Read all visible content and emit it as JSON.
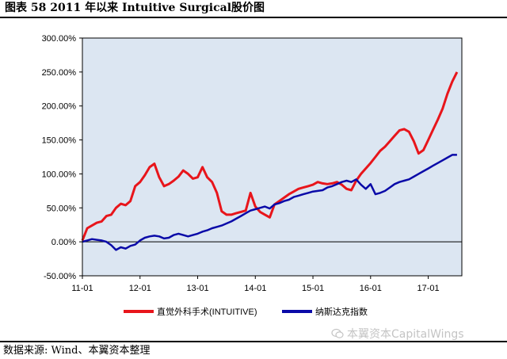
{
  "caption": "图表 58 2011 年以来 Intuitive Surgical股价图",
  "source": "数据来源:  Wind、本翼资本整理",
  "watermark": "本翼资本CapitalWings",
  "colors": {
    "intuitive": "#e8151b",
    "nasdaq": "#0a0aa8",
    "plot_bg": "#dce6f2",
    "axis": "#000000"
  },
  "chart_data": {
    "type": "line",
    "title": "",
    "xlabel": "",
    "ylabel": "",
    "ylim": [
      -50,
      300
    ],
    "y_ticks": [
      -50,
      0,
      50,
      100,
      150,
      200,
      250,
      300
    ],
    "y_tick_labels": [
      "-50.00%",
      "0.00%",
      "50.00%",
      "100.00%",
      "150.00%",
      "200.00%",
      "250.00%",
      "300.00%"
    ],
    "x_tick_labels": [
      "11-01",
      "12-01",
      "13-01",
      "14-01",
      "15-01",
      "16-01",
      "17-01"
    ],
    "x_unit": "months since 2011-01",
    "xlim": [
      0,
      79
    ],
    "grid": false,
    "legend_position": "bottom",
    "series": [
      {
        "name": "直觉外科手术(INTUITIVE)",
        "color": "#e8151b",
        "x": [
          0,
          1,
          2,
          3,
          4,
          5,
          6,
          7,
          8,
          9,
          10,
          11,
          12,
          13,
          14,
          15,
          16,
          17,
          18,
          19,
          20,
          21,
          22,
          23,
          24,
          25,
          26,
          27,
          28,
          29,
          30,
          31,
          32,
          33,
          34,
          35,
          36,
          37,
          38,
          39,
          40,
          41,
          42,
          43,
          44,
          45,
          46,
          47,
          48,
          49,
          50,
          51,
          52,
          53,
          54,
          55,
          56,
          57,
          58,
          59,
          60,
          61,
          62,
          63,
          64,
          65,
          66,
          67,
          68,
          69,
          70,
          71,
          72,
          73,
          74,
          75,
          76,
          77,
          78
        ],
        "values": [
          2,
          20,
          24,
          28,
          30,
          38,
          40,
          50,
          56,
          54,
          60,
          82,
          88,
          98,
          110,
          115,
          95,
          82,
          85,
          90,
          96,
          105,
          100,
          93,
          95,
          110,
          95,
          88,
          72,
          45,
          40,
          40,
          42,
          44,
          46,
          72,
          52,
          44,
          40,
          36,
          55,
          60,
          65,
          70,
          74,
          78,
          80,
          82,
          84,
          88,
          86,
          85,
          86,
          88,
          84,
          78,
          76,
          90,
          100,
          108,
          116,
          125,
          134,
          140,
          148,
          156,
          164,
          166,
          162,
          148,
          130,
          135,
          150,
          165,
          180,
          196,
          218,
          236,
          250
        ]
      },
      {
        "name": "纳斯达克指数",
        "color": "#0a0aa8",
        "x": [
          0,
          1,
          2,
          3,
          4,
          5,
          6,
          7,
          8,
          9,
          10,
          11,
          12,
          13,
          14,
          15,
          16,
          17,
          18,
          19,
          20,
          21,
          22,
          23,
          24,
          25,
          26,
          27,
          28,
          29,
          30,
          31,
          32,
          33,
          34,
          35,
          36,
          37,
          38,
          39,
          40,
          41,
          42,
          43,
          44,
          45,
          46,
          47,
          48,
          49,
          50,
          51,
          52,
          53,
          54,
          55,
          56,
          57,
          58,
          59,
          60,
          61,
          62,
          63,
          64,
          65,
          66,
          67,
          68,
          69,
          70,
          71,
          72,
          73,
          74,
          75,
          76,
          77,
          78
        ],
        "values": [
          0,
          2,
          4,
          3,
          2,
          0,
          -5,
          -12,
          -8,
          -10,
          -6,
          -4,
          2,
          6,
          8,
          9,
          8,
          5,
          6,
          10,
          12,
          10,
          8,
          10,
          12,
          15,
          17,
          20,
          22,
          24,
          27,
          30,
          34,
          38,
          42,
          46,
          48,
          50,
          52,
          49,
          55,
          57,
          60,
          62,
          66,
          68,
          70,
          72,
          74,
          75,
          76,
          80,
          82,
          85,
          88,
          90,
          88,
          92,
          84,
          78,
          85,
          70,
          72,
          75,
          80,
          85,
          88,
          90,
          92,
          96,
          100,
          104,
          108,
          112,
          116,
          120,
          124,
          128,
          128
        ]
      }
    ]
  }
}
